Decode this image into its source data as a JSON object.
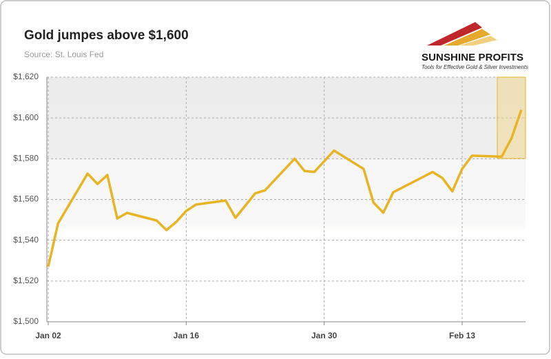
{
  "logo": {
    "name": "SUNSHINE PROFITS",
    "tagline": "Tools for Effective Gold & Silver Investments"
  },
  "chart_data": {
    "type": "line",
    "title": "Gold jumpes above $1,600",
    "subtitle": "Source: St. Louis Fed",
    "x": [
      "Jan 02",
      "Jan 03",
      "Jan 06",
      "Jan 07",
      "Jan 08",
      "Jan 09",
      "Jan 10",
      "Jan 13",
      "Jan 14",
      "Jan 15",
      "Jan 16",
      "Jan 17",
      "Jan 20",
      "Jan 21",
      "Jan 23",
      "Jan 24",
      "Jan 27",
      "Jan 28",
      "Jan 29",
      "Jan 31",
      "Feb 03",
      "Feb 04",
      "Feb 05",
      "Feb 06",
      "Feb 10",
      "Feb 11",
      "Feb 12",
      "Feb 13",
      "Feb 14",
      "Feb 17",
      "Feb 18",
      "Feb 19"
    ],
    "series": [
      {
        "name": "Gold",
        "color": "#e8b423",
        "values": [
          1527,
          1548.3,
          1572.7,
          1567.6,
          1572,
          1550.7,
          1553.4,
          1549.7,
          1545,
          1549,
          1554.4,
          1557.5,
          1559.5,
          1551,
          1563,
          1564.5,
          1580,
          1574,
          1573.5,
          1584,
          1575,
          1558.5,
          1553.5,
          1563.5,
          1573.5,
          1570.5,
          1564,
          1575,
          1581.5,
          1581,
          1590,
          1604
        ]
      }
    ],
    "xticks": [
      "Jan 02",
      "Jan 16",
      "Jan 30",
      "Feb 13"
    ],
    "ylim": [
      1500,
      1620
    ],
    "yticks": [
      {
        "value": 1500,
        "label": "$1,500"
      },
      {
        "value": 1520,
        "label": "$1,520"
      },
      {
        "value": 1540,
        "label": "$1,540"
      },
      {
        "value": 1560,
        "label": "$1,560"
      },
      {
        "value": 1580,
        "label": "$1,580"
      },
      {
        "value": 1600,
        "label": "$1,600"
      },
      {
        "value": 1620,
        "label": "$1,620"
      }
    ],
    "grid": true
  }
}
